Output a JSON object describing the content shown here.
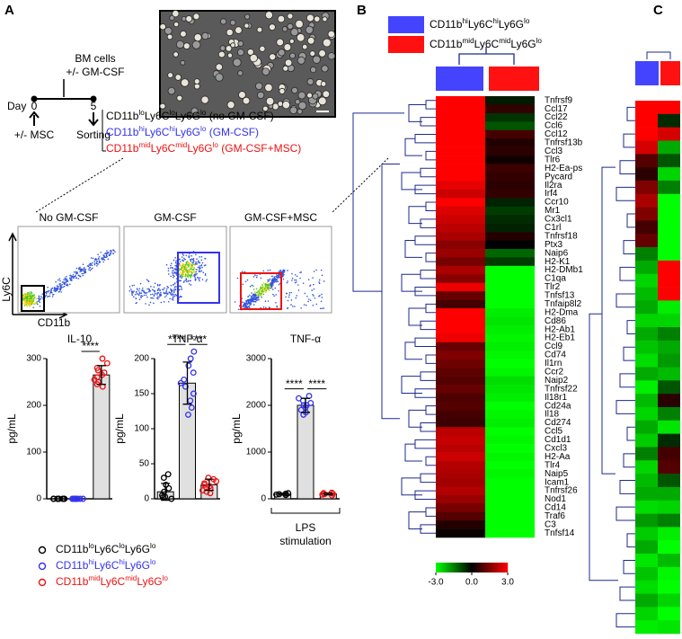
{
  "panels": {
    "a": "A",
    "b": "B",
    "c": "C"
  },
  "timeline": {
    "cells": "BM cells",
    "gm": "+/- GM-CSF",
    "day": "Day",
    "d0": "0",
    "d5": "5",
    "msc": "+/- MSC",
    "sorting": "Sorting"
  },
  "sorting": [
    {
      "color": "#000000",
      "parts": [
        {
          "t": "CD11b"
        },
        {
          "sup": "lo"
        },
        {
          "t": "Ly6C"
        },
        {
          "sup": "lo"
        },
        {
          "t": "Ly6G"
        },
        {
          "sup": "lo"
        },
        {
          "t": " (no GM-CSF)"
        }
      ]
    },
    {
      "color": "#3333ee",
      "parts": [
        {
          "t": "CD11b"
        },
        {
          "sup": "hi"
        },
        {
          "t": "Ly6C"
        },
        {
          "sup": "hi"
        },
        {
          "t": "Ly6G"
        },
        {
          "sup": "lo"
        },
        {
          "t": " (GM-CSF)"
        }
      ]
    },
    {
      "color": "#ee1111",
      "parts": [
        {
          "t": "CD11b"
        },
        {
          "sup": "mid"
        },
        {
          "t": "Ly6C"
        },
        {
          "sup": "mid"
        },
        {
          "t": "Ly6G"
        },
        {
          "sup": "lo"
        },
        {
          "t": " (GM-CSF+MSC)"
        }
      ]
    }
  ],
  "flow": {
    "titles": [
      "No GM-CSF",
      "GM-CSF",
      "GM-CSF+MSC"
    ],
    "ylabel": "Ly6C",
    "xlabel": "CD11b"
  },
  "bar_charts": [
    {
      "title": "IL-10",
      "ylabel": "pg/mL",
      "ylim": [
        0,
        300
      ],
      "yticks": [
        0,
        100,
        200,
        300
      ],
      "groups": [
        {
          "color": "#000000",
          "mean": 0,
          "error": 0,
          "points": [
            0,
            0,
            0,
            0,
            0,
            0,
            0,
            0
          ]
        },
        {
          "color": "#3333ee",
          "mean": 0,
          "error": 0,
          "points": [
            0,
            0,
            0,
            0,
            0,
            0,
            0,
            0
          ]
        },
        {
          "color": "#ee1111",
          "mean": 265,
          "error": 20,
          "points": [
            240,
            250,
            255,
            260,
            265,
            270,
            275,
            280,
            290,
            300,
            245
          ]
        }
      ],
      "significance": [
        {
          "from": 1,
          "to": 2,
          "label": "****"
        }
      ]
    },
    {
      "title": "TNF-α",
      "ylabel": "pg/mL",
      "ylim": [
        0,
        200
      ],
      "yticks": [
        0,
        50,
        100,
        150,
        200
      ],
      "groups": [
        {
          "color": "#000000",
          "mean": 10,
          "error": 12,
          "points": [
            0,
            5,
            10,
            15,
            20,
            30,
            35,
            3,
            2
          ]
        },
        {
          "color": "#3333ee",
          "mean": 165,
          "error": 30,
          "points": [
            120,
            130,
            140,
            150,
            160,
            165,
            170,
            180,
            190,
            200,
            210
          ]
        },
        {
          "color": "#ee1111",
          "mean": 20,
          "error": 8,
          "points": [
            10,
            15,
            18,
            20,
            22,
            25,
            28,
            30,
            12,
            8
          ]
        }
      ],
      "significance": [
        {
          "from": 0,
          "to": 1,
          "label": "****"
        },
        {
          "from": 1,
          "to": 2,
          "label": "****"
        }
      ]
    },
    {
      "title": "TNF-α",
      "ylabel": "pg/mL",
      "ylim": [
        0,
        3000
      ],
      "yticks": [
        0,
        1000,
        2000,
        3000
      ],
      "groups": [
        {
          "color": "#000000",
          "mean": 100,
          "error": 20,
          "points": [
            80,
            100,
            110,
            120,
            90
          ]
        },
        {
          "color": "#3333ee",
          "mean": 2000,
          "error": 150,
          "points": [
            1800,
            1850,
            1900,
            2000,
            2050,
            2100,
            2150,
            2200,
            1950,
            2000
          ]
        },
        {
          "color": "#ee1111",
          "mean": 105,
          "error": 20,
          "points": [
            70,
            90,
            100,
            120,
            130,
            110
          ]
        }
      ],
      "significance": [
        {
          "from": 0,
          "to": 1,
          "label": "****"
        },
        {
          "from": 1,
          "to": 2,
          "label": "****"
        }
      ],
      "note": "LPS stimulation"
    }
  ],
  "legend": [
    {
      "color": "#000000",
      "parts": [
        {
          "t": "CD11b"
        },
        {
          "sup": "lo"
        },
        {
          "t": "Ly6C"
        },
        {
          "sup": "lo"
        },
        {
          "t": "Ly6G"
        },
        {
          "sup": "lo"
        }
      ]
    },
    {
      "color": "#3333ee",
      "parts": [
        {
          "t": "CD11b"
        },
        {
          "sup": "hi"
        },
        {
          "t": "Ly6C"
        },
        {
          "sup": "hi"
        },
        {
          "t": "Ly6G"
        },
        {
          "sup": "lo"
        }
      ]
    },
    {
      "color": "#ee1111",
      "parts": [
        {
          "t": "CD11b"
        },
        {
          "sup": "mid"
        },
        {
          "t": "Ly6C"
        },
        {
          "sup": "mid"
        },
        {
          "t": "Ly6G"
        },
        {
          "sup": "lo"
        }
      ]
    }
  ],
  "heatmap_b": {
    "legend": [
      {
        "color": "#4444ff",
        "parts": [
          {
            "t": "CD11b"
          },
          {
            "sup": "hi"
          },
          {
            "t": "Ly6C"
          },
          {
            "sup": "hi"
          },
          {
            "t": "Ly6G"
          },
          {
            "sup": "lo"
          }
        ]
      },
      {
        "color": "#ff1111",
        "parts": [
          {
            "t": "CD11b"
          },
          {
            "sup": "mid"
          },
          {
            "t": "Ly6C"
          },
          {
            "sup": "mid"
          },
          {
            "t": "Ly6G"
          },
          {
            "sup": "lo"
          }
        ]
      }
    ],
    "genes": [
      "Tnfrsf9",
      "Ccl17",
      "Ccl22",
      "Ccl6",
      "Ccl12",
      "Tnfrsf13b",
      "Ccl3",
      "Tlr6",
      "H2-Ea-ps",
      "Pycard",
      "Il2ra",
      "Irf4",
      "Ccr10",
      "Mr1",
      "Cx3cl1",
      "C1rl",
      "Tnfrsf18",
      "Ptx3",
      "Naip6",
      "H2-K1",
      "H2-DMb1",
      "C1qa",
      "Tlr2",
      "Tnfsf13",
      "Tnfaip8l2",
      "H2-Dma",
      "Cd86",
      "H2-Ab1",
      "H2-Eb1",
      "Ccl9",
      "Cd74",
      "Il1rn",
      "Ccr2",
      "Naip2",
      "Tnfrsf22",
      "Il18r1",
      "Cd24a",
      "Il18",
      "Cd274",
      "Ccl5",
      "Cd1d1",
      "Cxcl3",
      "H2-Aa",
      "Tlr4",
      "Naip5",
      "Icam1",
      "Tnfrsf26",
      "Nod1",
      "Cd14",
      "Traf6",
      "C3",
      "Tnfsf14"
    ],
    "values": [
      [
        3,
        -0.3
      ],
      [
        3,
        0.6
      ],
      [
        3,
        -0.6
      ],
      [
        3,
        -1
      ],
      [
        3,
        0.8
      ],
      [
        3,
        0.4
      ],
      [
        3,
        0.5
      ],
      [
        3,
        0.2
      ],
      [
        3,
        0.7
      ],
      [
        3,
        0.6
      ],
      [
        2.7,
        0.5
      ],
      [
        2.4,
        0.6
      ],
      [
        3,
        -0.4
      ],
      [
        2.6,
        -0.7
      ],
      [
        2.4,
        -0.5
      ],
      [
        2.2,
        -0.4
      ],
      [
        2,
        0.4
      ],
      [
        1.6,
        0
      ],
      [
        1.8,
        -1.2
      ],
      [
        1.4,
        -0.7
      ],
      [
        2,
        -3
      ],
      [
        1.6,
        -3
      ],
      [
        2.8,
        -3
      ],
      [
        1.2,
        -3
      ],
      [
        0.8,
        -3
      ],
      [
        3,
        -2.8
      ],
      [
        3,
        -2.7
      ],
      [
        3,
        -2.8
      ],
      [
        2.8,
        -2.9
      ],
      [
        1.2,
        -2.8
      ],
      [
        1.5,
        -2.9
      ],
      [
        1.3,
        -3
      ],
      [
        1.1,
        -2.9
      ],
      [
        1,
        -2.6
      ],
      [
        1.2,
        -2.7
      ],
      [
        0.9,
        -2.8
      ],
      [
        1,
        -3
      ],
      [
        0.8,
        -2.9
      ],
      [
        0.7,
        -2.8
      ],
      [
        2.2,
        -3
      ],
      [
        2.3,
        -2.9
      ],
      [
        2.2,
        -3
      ],
      [
        2.4,
        -2.9
      ],
      [
        2.1,
        -3
      ],
      [
        2,
        -2.9
      ],
      [
        1.9,
        -3
      ],
      [
        2.1,
        -3
      ],
      [
        1.8,
        -3
      ],
      [
        1.4,
        -3
      ],
      [
        1,
        -3
      ],
      [
        0.4,
        -3
      ],
      [
        0.1,
        -3
      ]
    ],
    "scale": {
      "lim": [
        -3,
        3
      ],
      "ticks": [
        {
          "value": -3,
          "label": "-3.0"
        },
        {
          "value": 0,
          "label": "0.0"
        },
        {
          "value": 3,
          "label": "3.0"
        }
      ]
    }
  },
  "heatmap_c": {
    "values": [
      [
        3,
        3
      ],
      [
        3,
        -0.5
      ],
      [
        3,
        2.5
      ],
      [
        2.5,
        -2
      ],
      [
        1,
        -1
      ],
      [
        0.5,
        -2.5
      ],
      [
        1.5,
        -1.5
      ],
      [
        2,
        -3
      ],
      [
        1.5,
        -3
      ],
      [
        0.8,
        -3
      ],
      [
        1.2,
        -3
      ],
      [
        -1.5,
        -3
      ],
      [
        -2,
        3
      ],
      [
        -2.5,
        3
      ],
      [
        -2.2,
        3
      ],
      [
        -2,
        -2.8
      ],
      [
        -2.5,
        -2.5
      ],
      [
        -2,
        -1.5
      ],
      [
        -2.3,
        -2
      ],
      [
        -2.6,
        -1.8
      ],
      [
        -2,
        -2.2
      ],
      [
        -2.8,
        -1
      ],
      [
        -2.2,
        0.5
      ],
      [
        -2.5,
        -1.5
      ],
      [
        -2,
        -2.7
      ],
      [
        -2.4,
        -0.5
      ],
      [
        -1.5,
        0.8
      ],
      [
        -2.5,
        1
      ],
      [
        -2.2,
        -1
      ],
      [
        -2,
        -2
      ],
      [
        -2.6,
        -2.5
      ],
      [
        -1.8,
        -1.5
      ],
      [
        -2.4,
        -2.8
      ],
      [
        -2,
        -3
      ],
      [
        -2.7,
        -2.2
      ],
      [
        -2.3,
        -2.9
      ],
      [
        -2.6,
        -3
      ],
      [
        -2,
        -2.5
      ],
      [
        -2.5,
        -3
      ],
      [
        -2.8,
        -2.7
      ]
    ]
  }
}
